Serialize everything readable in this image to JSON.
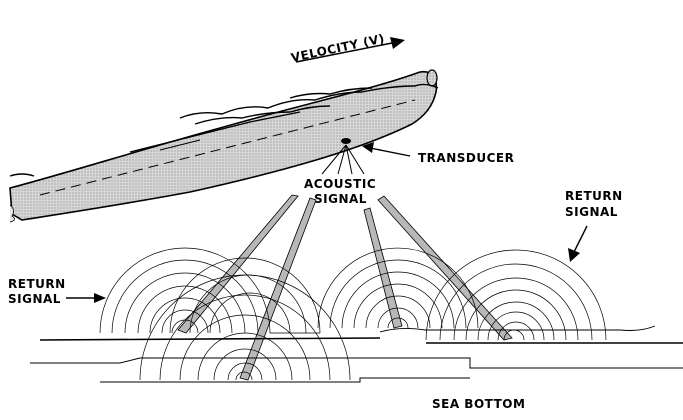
{
  "labels": {
    "velocity": "VELOCITY (V)",
    "transducer": "TRANSDUCER",
    "acoustic_line1": "ACOUSTIC",
    "acoustic_line2": "SIGNAL",
    "return_right_line1": "RETURN",
    "return_right_line2": "SIGNAL",
    "return_left_line1": "RETURN",
    "return_left_line2": "SIGNAL",
    "sea_bottom": "SEA BOTTOM"
  },
  "colors": {
    "hull_fill": "#cfcfcf",
    "beam_fill": "#b8b8b8",
    "ink": "#000000"
  }
}
